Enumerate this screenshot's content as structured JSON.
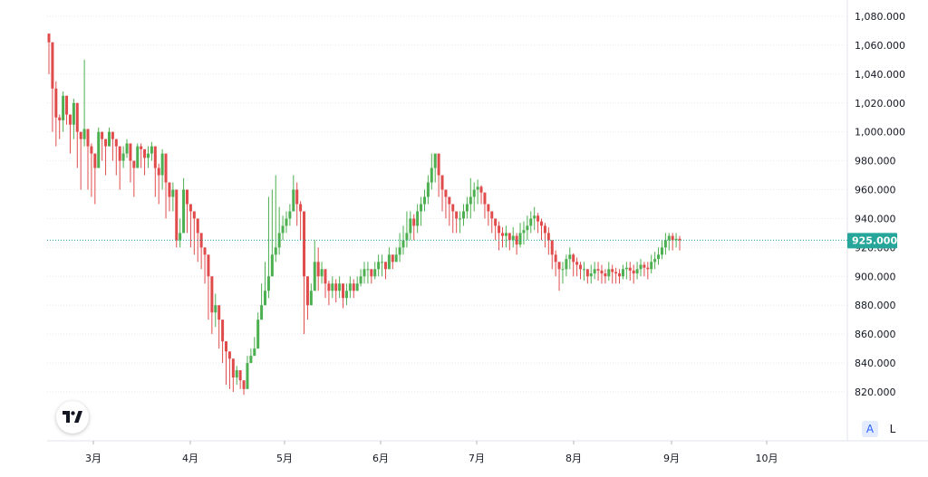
{
  "chart_data": {
    "type": "candlestick",
    "y_ticks": [
      "1,080.000",
      "1,060.000",
      "1,040.000",
      "1,020.000",
      "1,000.000",
      "980.000",
      "960.000",
      "940.000",
      "920.000",
      "900.000",
      "880.000",
      "860.000",
      "840.000",
      "820.000"
    ],
    "y_tick_values": [
      1080,
      1060,
      1040,
      1020,
      1000,
      980,
      960,
      940,
      920,
      900,
      880,
      860,
      840,
      820
    ],
    "x_ticks": [
      "3月",
      "4月",
      "5月",
      "6月",
      "7月",
      "8月",
      "9月",
      "10月"
    ],
    "last_price": 925,
    "last_price_label": "925.000",
    "ylim": [
      810,
      1090
    ],
    "grid": true,
    "colors": {
      "up": "#26a69a",
      "down": "#ef5350",
      "up_body": "#4caf50",
      "down_body": "#e04c4c",
      "accent": "#26a69a"
    },
    "close_series": [
      1062,
      1030,
      1010,
      1008,
      1025,
      1012,
      1005,
      1020,
      1000,
      995,
      1002,
      990,
      985,
      975,
      1000,
      995,
      990,
      1000,
      995,
      990,
      980,
      985,
      992,
      980,
      975,
      990,
      988,
      982,
      985,
      990,
      975,
      970,
      985,
      965,
      955,
      960,
      925,
      930,
      960,
      950,
      945,
      940,
      930,
      920,
      915,
      900,
      875,
      880,
      870,
      855,
      848,
      843,
      830,
      835,
      828,
      822,
      840,
      845,
      850,
      870,
      880,
      890,
      900,
      915,
      920,
      930,
      935,
      940,
      945,
      960,
      950,
      945,
      900,
      880,
      890,
      910,
      900,
      905,
      895,
      890,
      895,
      890,
      895,
      885,
      890,
      895,
      890,
      895,
      900,
      905,
      905,
      900,
      905,
      910,
      910,
      905,
      915,
      910,
      915,
      920,
      925,
      930,
      940,
      935,
      945,
      950,
      955,
      965,
      975,
      985,
      970,
      960,
      955,
      950,
      945,
      940,
      940,
      945,
      950,
      955,
      960,
      962,
      958,
      950,
      945,
      940,
      935,
      930,
      928,
      930,
      925,
      928,
      922,
      930,
      932,
      935,
      940,
      942,
      938,
      935,
      930,
      925,
      915,
      910,
      905,
      905,
      912,
      915,
      910,
      908,
      905,
      905,
      900,
      902,
      905,
      904,
      902,
      900,
      905,
      903,
      902,
      900,
      905,
      906,
      904,
      902,
      905,
      908,
      906,
      905,
      910,
      912,
      915,
      920,
      925,
      928,
      925,
      926,
      925
    ],
    "wick_hi": [
      1068,
      1060,
      1035,
      1012,
      1028,
      1025,
      1010,
      1023,
      1008,
      1000,
      1050,
      995,
      992,
      985,
      1003,
      998,
      995,
      1003,
      1000,
      995,
      990,
      990,
      995,
      988,
      980,
      992,
      992,
      987,
      990,
      993,
      980,
      978,
      988,
      970,
      960,
      965,
      935,
      940,
      968,
      955,
      950,
      945,
      935,
      925,
      920,
      910,
      880,
      888,
      875,
      865,
      852,
      846,
      842,
      838,
      832,
      826,
      845,
      850,
      858,
      875,
      895,
      910,
      955,
      960,
      970,
      948,
      942,
      945,
      950,
      970,
      965,
      952,
      918,
      900,
      895,
      925,
      920,
      910,
      902,
      897,
      900,
      898,
      900,
      890,
      895,
      900,
      898,
      900,
      905,
      910,
      910,
      905,
      910,
      915,
      915,
      910,
      920,
      915,
      920,
      930,
      935,
      945,
      945,
      943,
      950,
      955,
      960,
      970,
      985,
      985,
      975,
      965,
      960,
      955,
      950,
      945,
      945,
      950,
      955,
      968,
      965,
      967,
      963,
      955,
      950,
      945,
      940,
      938,
      934,
      935,
      930,
      934,
      930,
      937,
      938,
      942,
      945,
      948,
      944,
      940,
      937,
      934,
      925,
      918,
      910,
      910,
      915,
      920,
      916,
      913,
      910,
      910,
      905,
      908,
      910,
      910,
      908,
      905,
      910,
      908,
      906,
      905,
      908,
      910,
      910,
      908,
      910,
      912,
      910,
      910,
      915,
      917,
      920,
      925,
      930,
      930,
      930,
      930,
      928
    ],
    "wick_lo": [
      1040,
      1000,
      990,
      995,
      1000,
      1005,
      985,
      995,
      975,
      960,
      990,
      960,
      955,
      950,
      985,
      980,
      970,
      990,
      980,
      970,
      960,
      975,
      982,
      965,
      955,
      975,
      975,
      970,
      975,
      980,
      955,
      950,
      960,
      940,
      945,
      945,
      920,
      920,
      940,
      930,
      920,
      915,
      910,
      905,
      895,
      870,
      860,
      865,
      850,
      840,
      825,
      822,
      820,
      825,
      822,
      818,
      835,
      840,
      845,
      860,
      870,
      880,
      885,
      905,
      910,
      915,
      925,
      930,
      935,
      945,
      935,
      925,
      860,
      870,
      880,
      895,
      890,
      895,
      885,
      880,
      885,
      882,
      885,
      878,
      880,
      885,
      885,
      890,
      893,
      895,
      895,
      895,
      898,
      900,
      900,
      898,
      905,
      905,
      910,
      910,
      915,
      920,
      925,
      925,
      930,
      935,
      945,
      950,
      960,
      965,
      955,
      945,
      940,
      935,
      930,
      930,
      930,
      935,
      940,
      940,
      945,
      950,
      950,
      940,
      935,
      930,
      925,
      918,
      920,
      920,
      918,
      920,
      915,
      920,
      922,
      925,
      930,
      932,
      930,
      925,
      920,
      915,
      905,
      900,
      890,
      895,
      900,
      905,
      900,
      900,
      898,
      897,
      895,
      895,
      898,
      897,
      895,
      895,
      897,
      895,
      895,
      895,
      898,
      898,
      897,
      895,
      898,
      900,
      900,
      898,
      902,
      905,
      908,
      912,
      915,
      918,
      918,
      920,
      918
    ]
  }
}
